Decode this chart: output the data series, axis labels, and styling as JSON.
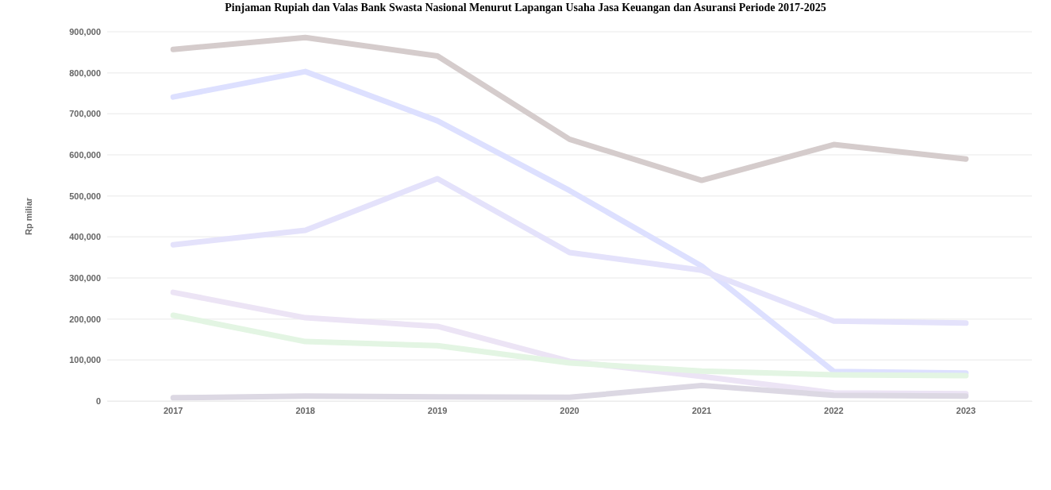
{
  "chart_data": {
    "type": "line",
    "title": "Pinjaman Rupiah dan Valas Bank Swasta Nasional Menurut Lapangan Usaha Jasa Keuangan dan Asuransi Periode 2017-2025",
    "ylabel": "Rp miliar",
    "categories": [
      "2017",
      "2018",
      "2019",
      "2020",
      "2021",
      "2022",
      "2023"
    ],
    "series": [
      {
        "color": "#d5cccc",
        "values": [
          857000,
          886000,
          841000,
          638000,
          538000,
          625000,
          590000
        ]
      },
      {
        "color": "#dde0ff",
        "values": [
          741000,
          803000,
          683000,
          513000,
          329000,
          72000,
          68000
        ]
      },
      {
        "color": "#e4e2fb",
        "values": [
          381000,
          416000,
          542000,
          362000,
          319000,
          195000,
          190000
        ]
      },
      {
        "color": "#ece4f5",
        "values": [
          265000,
          203000,
          182000,
          97000,
          60000,
          20000,
          18000
        ]
      },
      {
        "color": "#e3f5e3",
        "values": [
          209000,
          145000,
          135000,
          93000,
          73000,
          64000,
          62000
        ]
      },
      {
        "color": "#dcd8e3",
        "values": [
          8000,
          12000,
          10000,
          9000,
          38000,
          14000,
          12000
        ]
      }
    ],
    "ylim": [
      0,
      900000
    ],
    "yticks": [
      0,
      {
        "value": 100000,
        "label": "100,000"
      },
      {
        "value": 200000,
        "label": "200,000"
      },
      {
        "value": 300000,
        "label": "300,000"
      },
      {
        "value": 400000,
        "label": "400,000"
      },
      {
        "value": 500000,
        "label": "500,000"
      },
      {
        "value": 600000,
        "label": "600,000"
      },
      {
        "value": 700000,
        "label": "700,000"
      },
      {
        "value": 800000,
        "label": "800,000"
      },
      {
        "value": 900000,
        "label": "900,000"
      }
    ],
    "grid": "y",
    "marker": "none",
    "line_style": "solid"
  }
}
